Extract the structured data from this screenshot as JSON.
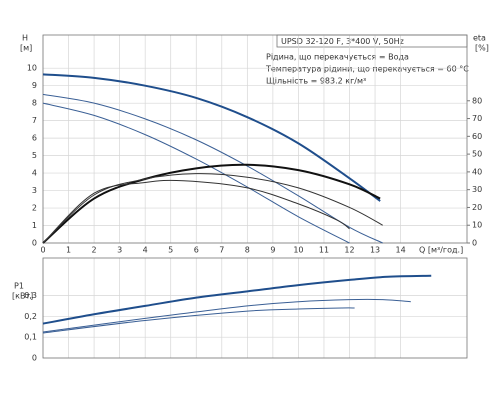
{
  "chart_data": [
    {
      "type": "line",
      "title": "UPSD 32-120 F, 3*400 V, 50Hz",
      "annotations": [
        "Рідина, що перекачується = Вода",
        "Температура рідини, що перекачується = 60 °C",
        "Щільність = 983.2 кг/м³"
      ],
      "ylabel": "H",
      "yunit": "[м]",
      "y2label": "eta",
      "y2unit": "[%]",
      "xlabel": "Q [м³/год.]",
      "xlim": [
        0,
        16.6
      ],
      "xticks": [
        0,
        1,
        2,
        3,
        4,
        5,
        6,
        7,
        8,
        9,
        10,
        11,
        12,
        13,
        14
      ],
      "ylim": [
        0,
        11.9
      ],
      "yticks": [
        0,
        1,
        2,
        3,
        4,
        5,
        6,
        7,
        8,
        9,
        10
      ],
      "y2lim": [
        0,
        117
      ],
      "y2ticks": [
        0,
        10,
        20,
        30,
        40,
        50,
        60,
        70,
        80
      ],
      "grid": true,
      "series": [
        {
          "color": "#1f4e8c",
          "x": [
            0,
            2,
            4,
            6,
            8,
            10,
            12,
            13.2
          ],
          "values": [
            9.65,
            9.45,
            9.0,
            8.3,
            7.2,
            5.7,
            3.7,
            2.4
          ]
        },
        {
          "color": "#3a5f95",
          "x": [
            0,
            2,
            4,
            6,
            8,
            10,
            12,
            13.3
          ],
          "values": [
            8.5,
            8.0,
            7.1,
            5.9,
            4.4,
            2.7,
            0.9,
            0
          ]
        },
        {
          "color": "#3a5f95",
          "x": [
            0,
            2,
            4,
            6,
            8,
            10,
            12
          ],
          "values": [
            8.0,
            7.3,
            6.2,
            4.8,
            3.2,
            1.5,
            0
          ]
        },
        {
          "color": "#111111",
          "axis": "y2",
          "x": [
            0,
            2,
            4,
            6,
            8,
            10,
            12,
            13.2
          ],
          "values": [
            0,
            25,
            36,
            42,
            44,
            41,
            33,
            25
          ]
        },
        {
          "color": "#333333",
          "axis": "y2",
          "x": [
            0,
            2,
            4,
            6,
            8,
            10,
            12,
            13.3
          ],
          "values": [
            0,
            27,
            36,
            39,
            37,
            31,
            20,
            10
          ]
        },
        {
          "color": "#333333",
          "axis": "y2",
          "x": [
            0,
            2,
            4,
            5.5,
            8,
            10,
            11.5,
            12
          ],
          "values": [
            0,
            28,
            34,
            35,
            31,
            22,
            13,
            8
          ]
        }
      ]
    },
    {
      "type": "line",
      "ylabel": "P1",
      "yunit": "[кВт]",
      "xlim": [
        0,
        16.6
      ],
      "xticks": [
        0,
        1,
        2,
        3,
        4,
        5,
        6,
        7,
        8,
        9,
        10,
        11,
        12,
        13,
        14
      ],
      "ylim": [
        0,
        0.48
      ],
      "yticks": [
        0,
        {
          "value": 0.1,
          "label": "0,1"
        },
        {
          "value": 0.2,
          "label": "0,2"
        },
        {
          "value": 0.3,
          "label": "0,3"
        }
      ],
      "grid": true,
      "series": [
        {
          "color": "#1f4e8c",
          "x": [
            0,
            2,
            4,
            6,
            8,
            10,
            12,
            13.5,
            15.2
          ],
          "values": [
            0.165,
            0.21,
            0.25,
            0.29,
            0.32,
            0.35,
            0.375,
            0.39,
            0.395
          ]
        },
        {
          "color": "#3a5f95",
          "x": [
            0,
            4,
            8,
            10,
            12,
            13.3,
            14.4
          ],
          "values": [
            0.125,
            0.19,
            0.25,
            0.27,
            0.28,
            0.28,
            0.27
          ]
        },
        {
          "color": "#3a5f95",
          "x": [
            0,
            4,
            8,
            10,
            11.7,
            12.2
          ],
          "values": [
            0.12,
            0.18,
            0.225,
            0.235,
            0.24,
            0.24
          ]
        }
      ]
    }
  ]
}
